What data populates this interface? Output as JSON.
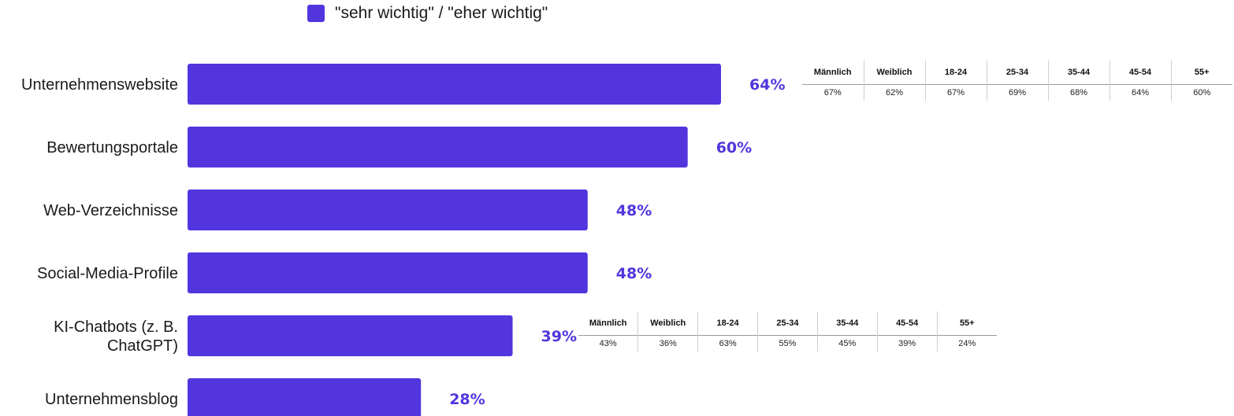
{
  "legend": {
    "label": "\"sehr wichtig\" / \"eher wichtig\""
  },
  "colors": {
    "bar": "#5235dd",
    "value_label": "#5235dd"
  },
  "chart_data": {
    "type": "bar",
    "orientation": "horizontal",
    "title": "",
    "xlabel": "",
    "ylabel": "",
    "xlim": [
      0,
      100
    ],
    "grid": false,
    "legend_position": "top",
    "categories": [
      [
        "Unternehmenswebsite"
      ],
      [
        "Bewertungsportale"
      ],
      [
        "Web-Verzeichnisse"
      ],
      [
        "Social-Media-Profile"
      ],
      [
        "KI-Chatbots (z. B.",
        "ChatGPT)"
      ],
      [
        "Unternehmensblog"
      ]
    ],
    "series": [
      {
        "name": "\"sehr wichtig\" / \"eher wichtig\"",
        "values": [
          64,
          60,
          48,
          48,
          39,
          28
        ],
        "labels": [
          "64%",
          "60%",
          "48%",
          "48%",
          "39%",
          "28%"
        ]
      }
    ]
  },
  "breakdowns": [
    {
      "category": "Unternehmenswebsite",
      "headers": [
        "Männlich",
        "Weiblich",
        "18-24",
        "25-34",
        "35-44",
        "45-54",
        "55+"
      ],
      "values": [
        "67%",
        "62%",
        "67%",
        "69%",
        "68%",
        "64%",
        "60%"
      ]
    },
    {
      "category": "KI-Chatbots (z. B. ChatGPT)",
      "headers": [
        "Männlich",
        "Weiblich",
        "18-24",
        "25-34",
        "35-44",
        "45-54",
        "55+"
      ],
      "values": [
        "43%",
        "36%",
        "63%",
        "55%",
        "45%",
        "39%",
        "24%"
      ]
    }
  ]
}
